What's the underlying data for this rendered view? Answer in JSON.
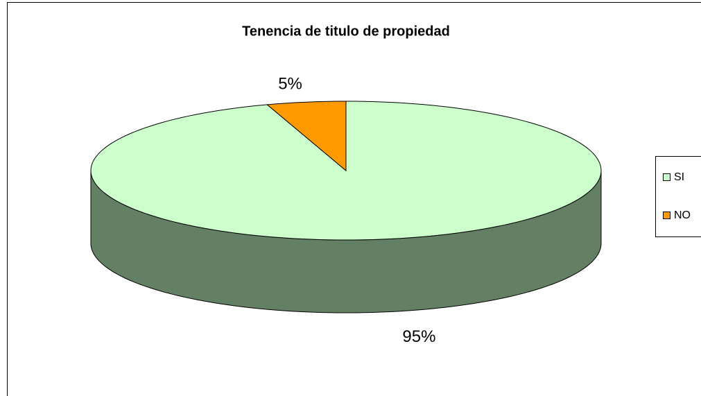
{
  "chart_data": {
    "type": "pie3d",
    "title": "Tenencia de titulo de propiedad",
    "categories": [
      "SI",
      "NO"
    ],
    "values": [
      95,
      5
    ],
    "value_labels": [
      "95%",
      "5%"
    ],
    "colors": [
      "#ccffcc",
      "#ff9900"
    ],
    "side_color": "#648064",
    "legend": "right"
  }
}
